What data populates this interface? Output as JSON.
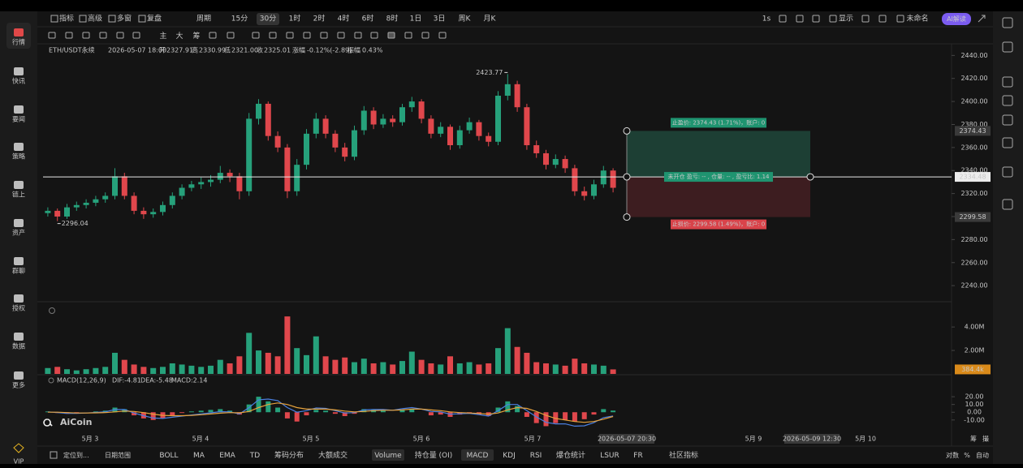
{
  "sidebar": {
    "items": [
      "行情",
      "快讯",
      "要闻",
      "策略",
      "链上",
      "资产",
      "群聊",
      "授权",
      "数据",
      "更多"
    ],
    "vip": "VIP"
  },
  "toolbar": {
    "tools": [
      "指标",
      "高级",
      "多窗",
      "复盘"
    ],
    "period_label": "周期",
    "periods": [
      "15分",
      "30分",
      "1时",
      "2时",
      "4时",
      "6时",
      "8时",
      "1日",
      "3日",
      "周K",
      "月K"
    ],
    "active": "30分",
    "right": [
      "1s",
      "显示",
      "未命名"
    ],
    "ai": "AI解读",
    "drawing": [
      "主",
      "大",
      "筹"
    ]
  },
  "info": {
    "symbol": "ETH/USDT永续",
    "time": "2026-05-07 18:00",
    "open_label": "开",
    "open": "2327.91",
    "high_label": "高",
    "high": "2330.99",
    "low_label": "低",
    "low": "2321.00",
    "close_label": "收",
    "close": "2325.01",
    "change_label": "涨幅",
    "change": "-0.12%(-2.89)",
    "amplitude_label": "振幅",
    "amplitude": "0.43%"
  },
  "chart_data": {
    "type": "candlestick",
    "up_color": "#26a17b",
    "down_color": "#e0474c",
    "ylim": [
      2226,
      2448
    ],
    "yticks": [
      {
        "value": 2440,
        "label": "2440.00"
      },
      {
        "value": 2420,
        "label": "2420.00"
      },
      {
        "value": 2400,
        "label": "2400.00"
      },
      {
        "value": 2380,
        "label": "2380.00"
      },
      {
        "value": 2360,
        "label": "2360.00"
      },
      {
        "value": 2340,
        "label": "2340.00"
      },
      {
        "value": 2320,
        "label": "2320.00"
      },
      {
        "value": 2300,
        "label": "2300.00"
      },
      {
        "value": 2280,
        "label": "2280.00"
      },
      {
        "value": 2260,
        "label": "2260.00"
      },
      {
        "value": 2240,
        "label": "2240.00"
      }
    ],
    "ohlc": [
      [
        2303,
        2308,
        2300,
        2305
      ],
      [
        2305,
        2307,
        2296.04,
        2300
      ],
      [
        2300,
        2311,
        2298,
        2308
      ],
      [
        2308,
        2313,
        2305,
        2310
      ],
      [
        2310,
        2315,
        2307,
        2312
      ],
      [
        2312,
        2318,
        2309,
        2315
      ],
      [
        2315,
        2321,
        2312,
        2318
      ],
      [
        2318,
        2342,
        2315,
        2335
      ],
      [
        2335,
        2338,
        2315,
        2318
      ],
      [
        2318,
        2321,
        2302,
        2305
      ],
      [
        2305,
        2308,
        2298,
        2302
      ],
      [
        2302,
        2307,
        2299,
        2304
      ],
      [
        2304,
        2313,
        2301,
        2310
      ],
      [
        2310,
        2321,
        2307,
        2318
      ],
      [
        2318,
        2328,
        2315,
        2325
      ],
      [
        2325,
        2331,
        2322,
        2328
      ],
      [
        2328,
        2334,
        2324,
        2330
      ],
      [
        2330,
        2336,
        2326,
        2332
      ],
      [
        2332,
        2344,
        2329,
        2338
      ],
      [
        2338,
        2341,
        2330,
        2335
      ],
      [
        2335,
        2338,
        2315,
        2322
      ],
      [
        2322,
        2390,
        2318,
        2385
      ],
      [
        2385,
        2402,
        2380,
        2398
      ],
      [
        2398,
        2400,
        2366,
        2370
      ],
      [
        2370,
        2374,
        2356,
        2360
      ],
      [
        2360,
        2363,
        2316,
        2322
      ],
      [
        2322,
        2350,
        2318,
        2345
      ],
      [
        2345,
        2376,
        2341,
        2372
      ],
      [
        2372,
        2390,
        2368,
        2385
      ],
      [
        2385,
        2388,
        2368,
        2372
      ],
      [
        2372,
        2375,
        2356,
        2360
      ],
      [
        2360,
        2364,
        2348,
        2352
      ],
      [
        2352,
        2379,
        2349,
        2375
      ],
      [
        2375,
        2396,
        2371,
        2392
      ],
      [
        2392,
        2395,
        2376,
        2380
      ],
      [
        2380,
        2389,
        2377,
        2385
      ],
      [
        2385,
        2388,
        2378,
        2382
      ],
      [
        2382,
        2398,
        2379,
        2395
      ],
      [
        2395,
        2404,
        2391,
        2400
      ],
      [
        2400,
        2402,
        2381,
        2385
      ],
      [
        2385,
        2388,
        2368,
        2372
      ],
      [
        2372,
        2382,
        2369,
        2378
      ],
      [
        2378,
        2380,
        2358,
        2362
      ],
      [
        2362,
        2379,
        2359,
        2375
      ],
      [
        2375,
        2386,
        2372,
        2382
      ],
      [
        2382,
        2384,
        2366,
        2370
      ],
      [
        2370,
        2373,
        2361,
        2365
      ],
      [
        2365,
        2409,
        2362,
        2405
      ],
      [
        2405,
        2423.77,
        2401,
        2415
      ],
      [
        2415,
        2418,
        2391,
        2395
      ],
      [
        2395,
        2398,
        2358,
        2362
      ],
      [
        2362,
        2366,
        2351,
        2355
      ],
      [
        2355,
        2358,
        2341,
        2345
      ],
      [
        2345,
        2354,
        2342,
        2350
      ],
      [
        2350,
        2353,
        2338,
        2342
      ],
      [
        2342,
        2345,
        2318,
        2322
      ],
      [
        2322,
        2326,
        2314,
        2318
      ],
      [
        2318,
        2332,
        2315,
        2328
      ],
      [
        2328,
        2344,
        2325,
        2340
      ],
      [
        2340,
        2342,
        2321,
        2325
      ]
    ],
    "high_mark": 2423.77,
    "low_mark": 2296.04,
    "position": {
      "take_profit": 2374.43,
      "entry": 2334.48,
      "stop_loss": 2299.58,
      "tp_text": "止盈价: 2374.43 (1.71%)，账户: 0",
      "entry_text": "未开仓 盈亏: -- , 仓量: -- , 盈亏比: 1.14",
      "sl_text": "止损价: 2299.58 (1.49%)，账户: 0"
    },
    "volume": {
      "ylim": [
        0,
        5600000
      ],
      "yticks": [
        {
          "value": 4000000,
          "label": "4.00M"
        },
        {
          "value": 2000000,
          "label": "2.00M"
        }
      ],
      "values": [
        500000,
        600000,
        400000,
        300000,
        400000,
        500000,
        600000,
        1800000,
        1200000,
        800000,
        600000,
        500000,
        600000,
        900000,
        800000,
        700000,
        600000,
        700000,
        1200000,
        900000,
        1500000,
        3500000,
        2000000,
        1800000,
        1500000,
        4900000,
        2200000,
        1600000,
        3200000,
        1500000,
        1200000,
        1400000,
        1000000,
        1300000,
        900000,
        1000000,
        800000,
        1100000,
        1900000,
        1200000,
        900000,
        800000,
        1500000,
        900000,
        1000000,
        800000,
        900000,
        2200000,
        3900000,
        2300000,
        1800000,
        1000000,
        900000,
        800000,
        700000,
        1300000,
        900000,
        800000,
        700000,
        384400
      ],
      "last_tag": {
        "value": 384400,
        "label": "384.4k"
      }
    },
    "macd": {
      "title": "MACD(12,26,9)",
      "dif_label": "DIF:-4.81",
      "dea_label": "DEA:-5.48",
      "macd_label": "MACD:2.14",
      "ylim": [
        -28,
        40
      ],
      "yticks": [
        {
          "value": 20,
          "label": "20.00"
        },
        {
          "value": 10,
          "label": "10.00"
        },
        {
          "value": 0,
          "label": "0.00"
        },
        {
          "value": -10,
          "label": "-10.00"
        }
      ],
      "hist": [
        1,
        -1,
        -2,
        -1,
        0,
        1,
        2,
        6,
        4,
        -4,
        -8,
        -10,
        -8,
        -4,
        -1,
        1,
        2,
        3,
        4,
        2,
        -3,
        10,
        20,
        14,
        6,
        -8,
        -12,
        -4,
        3,
        2,
        -2,
        -5,
        -2,
        4,
        3,
        2,
        0,
        3,
        4,
        0,
        -4,
        -3,
        -6,
        -3,
        -1,
        -3,
        -5,
        6,
        14,
        8,
        -6,
        -14,
        -18,
        -14,
        -10,
        -12,
        -9,
        -3,
        4,
        2.14
      ],
      "dif": [
        0.5,
        -0.5,
        -1.5,
        -1.5,
        -1,
        -0.3,
        0.5,
        3.5,
        3.5,
        -1,
        -4.5,
        -7.5,
        -8,
        -6.5,
        -5,
        -3.5,
        -2.2,
        -0.8,
        0.8,
        0.5,
        -2.3,
        6,
        16,
        17,
        15,
        6,
        0,
        2,
        5.5,
        5,
        2,
        -1,
        -0.5,
        3,
        3.5,
        3.5,
        2.5,
        4.5,
        6,
        4,
        1,
        0.5,
        -2.5,
        -2,
        -1.5,
        -3,
        -5,
        2,
        10,
        10,
        2,
        -6,
        -13,
        -15,
        -15,
        -18,
        -17.5,
        -13.5,
        -7,
        -4.81
      ],
      "dea": [
        0,
        0,
        -0.5,
        -1,
        -1,
        -0.8,
        -0.5,
        0.5,
        1.5,
        1,
        -0.5,
        -2.5,
        -4,
        -4.5,
        -4.5,
        -4,
        -3.2,
        -2.3,
        -1.2,
        -0.5,
        -0.8,
        1,
        6,
        10,
        12,
        10,
        6,
        4,
        4,
        4,
        3,
        1.5,
        0.5,
        1,
        2,
        2.5,
        2.5,
        3,
        4,
        4,
        3,
        2,
        0.5,
        -0.5,
        -1,
        -1.5,
        -2.5,
        -1,
        3,
        6,
        5,
        1,
        -4,
        -8,
        -10,
        -12,
        -13,
        -12,
        -9,
        -5.48
      ],
      "dif_color": "#4a7fe0",
      "dea_color": "#e6a23c"
    },
    "xaxis": {
      "labels": [
        "5月 3",
        "5月 4",
        "5月 5",
        "5月 6",
        "5月 7",
        "5月 9",
        "5月 10"
      ],
      "highlights": [
        "2026-05-07 20:30",
        "2026-05-09 12:30"
      ]
    },
    "watermark": "AiCoin"
  },
  "bottom": {
    "locate": "定位到...",
    "range": "日期范围",
    "indicators": [
      "BOLL",
      "MA",
      "EMA",
      "TD",
      "筹码分布",
      "大额成交",
      "Volume",
      "持仓量 (OI)",
      "MACD",
      "KDJ",
      "RSI",
      "爆仓统计",
      "LSUR",
      "FR",
      "社区指标"
    ],
    "active": [
      "Volume",
      "MACD"
    ],
    "right": [
      "对数",
      "%",
      "自动"
    ],
    "axis_tools": [
      "筹",
      "撮"
    ]
  }
}
